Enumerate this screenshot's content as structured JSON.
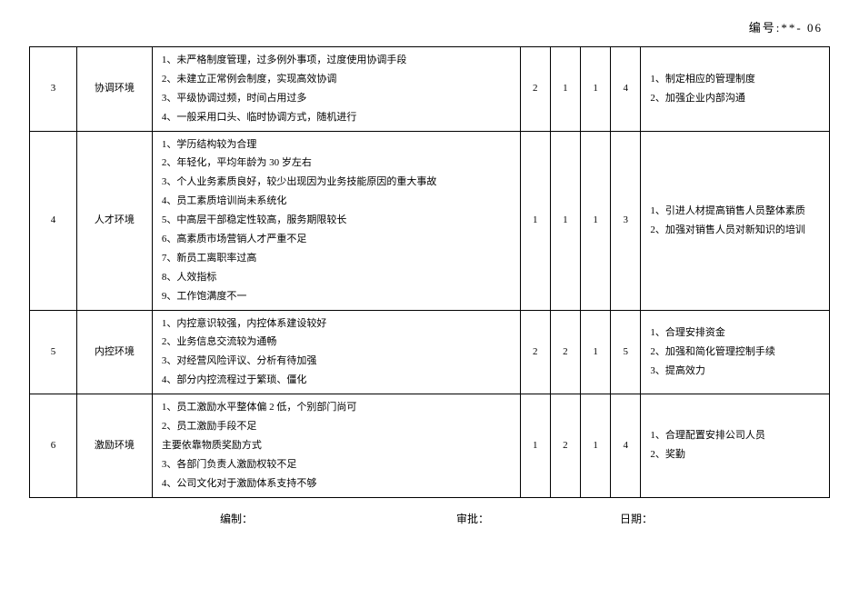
{
  "doc_id": "编号:**- 06",
  "rows": [
    {
      "idx": "3",
      "category": "协调环境",
      "lines": [
        "1、未严格制度管理，过多例外事项，过度使用协调手段",
        "2、未建立正常例会制度，实现高效协调",
        "3、平级协调过频，时间占用过多",
        "4、一般采用口头、临时协调方式，随机进行"
      ],
      "scores": [
        "2",
        "1",
        "1",
        "4"
      ],
      "measures": [
        "1、制定相应的管理制度",
        "2、加强企业内部沟通"
      ]
    },
    {
      "idx": "4",
      "category": "人才环境",
      "lines": [
        "1、学历结构较为合理",
        "2、年轻化，平均年龄为 30 岁左右",
        "3、个人业务素质良好，较少出现因为业务技能原因的重大事故",
        "4、员工素质培训尚未系统化",
        "5、中高层干部稳定性较高，服务期限较长",
        "6、高素质市场营销人才严重不足",
        "7、新员工离职率过高",
        "8、人效指标",
        "9、工作饱满度不一"
      ],
      "scores": [
        "1",
        "1",
        "1",
        "3"
      ],
      "measures": [
        "1、引进人材提高销售人员整体素质",
        "2、加强对销售人员对新知识的培训"
      ]
    },
    {
      "idx": "5",
      "category": "内控环境",
      "lines": [
        "1、内控意识较强，内控体系建设较好",
        "2、业务信息交流较为通畅",
        "3、对经营风险评议、分析有待加强",
        "4、部分内控流程过于繁琐、僵化"
      ],
      "scores": [
        "2",
        "2",
        "1",
        "5"
      ],
      "measures": [
        "1、合理安排资金",
        "2、加强和简化管理控制手续",
        "3、提高效力"
      ]
    },
    {
      "idx": "6",
      "category": "激励环境",
      "lines": [
        "1、员工激励水平整体偏 2 低，个别部门尚可",
        "2、员工激励手段不足",
        "主要依靠物质奖励方式",
        "3、各部门负责人激励权较不足",
        "4、公司文化对于激励体系支持不够"
      ],
      "scores": [
        "1",
        "2",
        "1",
        "4"
      ],
      "measures": [
        "1、合理配置安排公司人员",
        "2、奖勤"
      ]
    }
  ],
  "footer": {
    "f1": "编制：",
    "f2": "审批：",
    "f3": "日期："
  }
}
